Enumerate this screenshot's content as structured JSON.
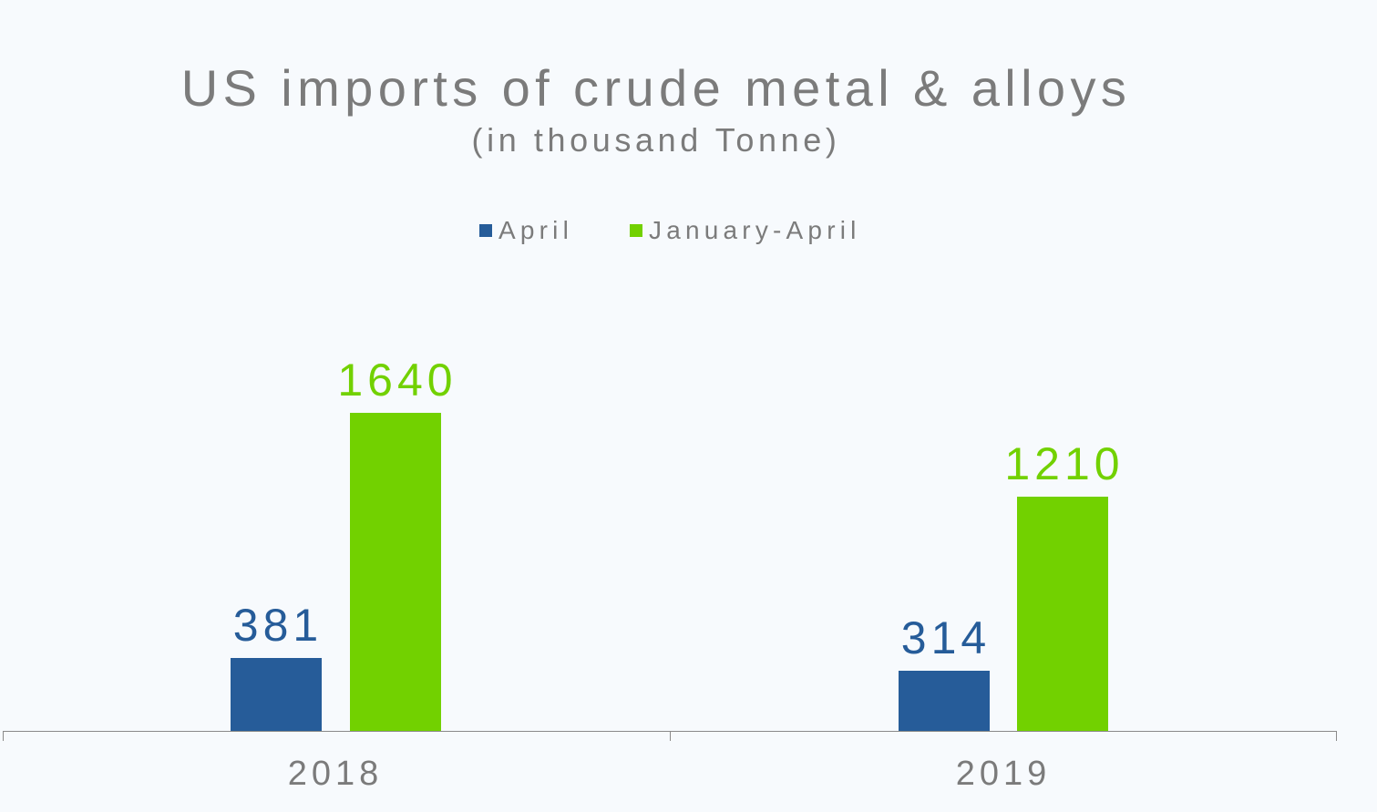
{
  "chart_data": {
    "type": "bar",
    "title": "US imports of crude metal & alloys",
    "subtitle": "(in thousand Tonne)",
    "xlabel": "",
    "ylabel": "",
    "categories": [
      "2018",
      "2019"
    ],
    "series": [
      {
        "name": "April",
        "color": "#265c99",
        "values": [
          381,
          314
        ],
        "labels": [
          "381",
          "314"
        ]
      },
      {
        "name": "January-April",
        "color": "#72d100",
        "values": [
          1640,
          1210
        ],
        "labels": [
          "1640",
          "1210"
        ]
      }
    ],
    "legend_position": "top",
    "grid": false,
    "y_axis_visible": false,
    "data_labels": true
  }
}
